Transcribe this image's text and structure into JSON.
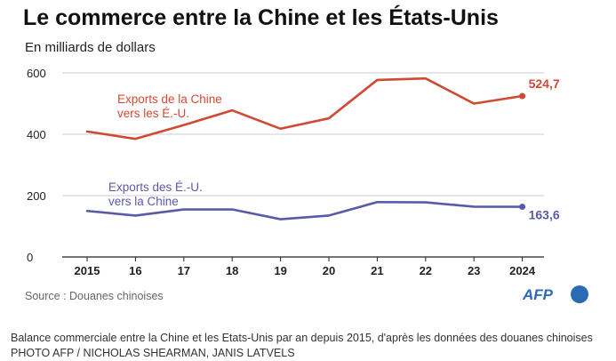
{
  "title": "Le commerce entre la Chine et les États-Unis",
  "subtitle": "En milliards de dollars",
  "source": "Source : Douanes chinoises",
  "logo_text": "AFP",
  "caption": "Balance commerciale entre la Chine et les Etats-Unis par an depuis 2015, d'après les données des douanes chinoises PHOTO AFP / NICHOLAS SHEARMAN, JANIS LATVELS",
  "colors": {
    "china_exports": "#d04a33",
    "us_exports": "#5a5aa8",
    "logo": "#2b6ab5"
  },
  "chart_data": {
    "type": "line",
    "x_tick_labels": [
      "2015",
      "16",
      "17",
      "18",
      "19",
      "20",
      "21",
      "22",
      "23",
      "2024"
    ],
    "y_ticks": [
      0,
      200,
      400,
      600
    ],
    "ylim": [
      0,
      600
    ],
    "grid": true,
    "series": [
      {
        "name": "Exports de la Chine vers les É.-U.",
        "label_lines": [
          "Exports de la Chine",
          "vers les É.-U."
        ],
        "values": [
          409,
          385,
          430,
          478,
          418,
          452,
          577,
          582,
          500,
          524.7
        ],
        "end_label": "524,7"
      },
      {
        "name": "Exports des É.-U. vers la Chine",
        "label_lines": [
          "Exports des É.-U.",
          "vers la Chine"
        ],
        "values": [
          150,
          135,
          155,
          155,
          123,
          135,
          179,
          178,
          164,
          163.6
        ],
        "end_label": "163,6"
      }
    ]
  }
}
